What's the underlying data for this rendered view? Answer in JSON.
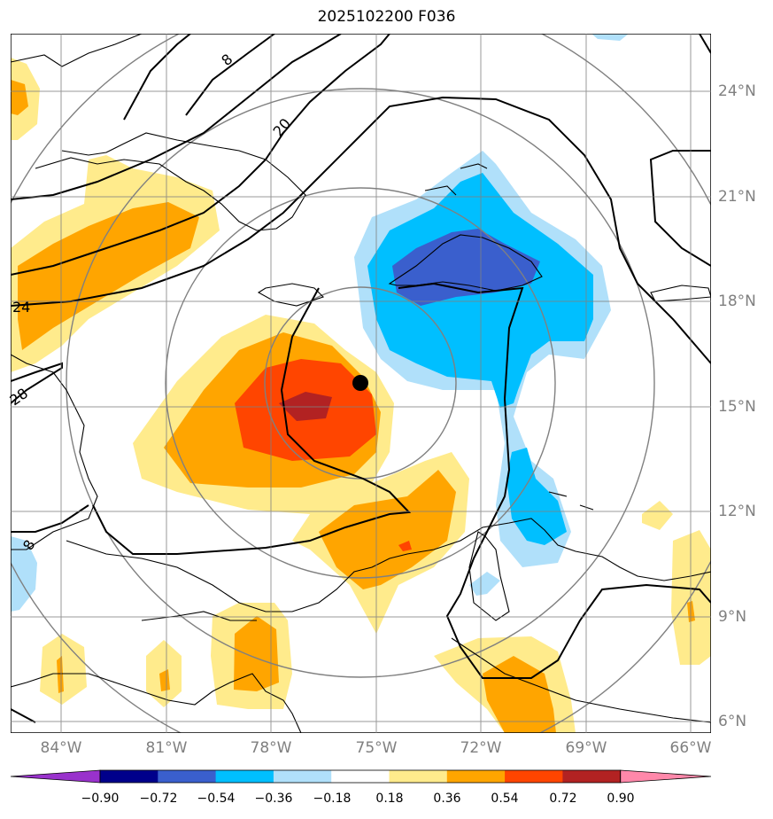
{
  "title": "2025102200 F036",
  "lon_labels": [
    "84°W",
    "81°W",
    "78°W",
    "75°W",
    "72°W",
    "69°W",
    "66°W"
  ],
  "lat_labels": [
    "24°N",
    "21°N",
    "18°N",
    "15°N",
    "12°N",
    "9°N",
    "6°N"
  ],
  "contour_labels": [
    "8",
    "20",
    "24",
    "28",
    "8"
  ],
  "colorbar": {
    "tick_labels": [
      "−0.90",
      "−0.72",
      "−0.54",
      "−0.36",
      "−0.18",
      "0.18",
      "0.36",
      "0.54",
      "0.72",
      "0.90"
    ],
    "colors": [
      "#9932cc",
      "#00008b",
      "#3a5fcd",
      "#00bfff",
      "#b0e0fa",
      "#ffffff",
      "#ffeb8c",
      "#ffa500",
      "#ff4500",
      "#b22222",
      "#ff88aa"
    ]
  },
  "storm_center": {
    "lon": -75.3,
    "lat": 15.7
  },
  "map_extent": {
    "lon_min": -85.5,
    "lon_max": -65.5,
    "lat_min": 5.8,
    "lat_max": 25.8
  }
}
